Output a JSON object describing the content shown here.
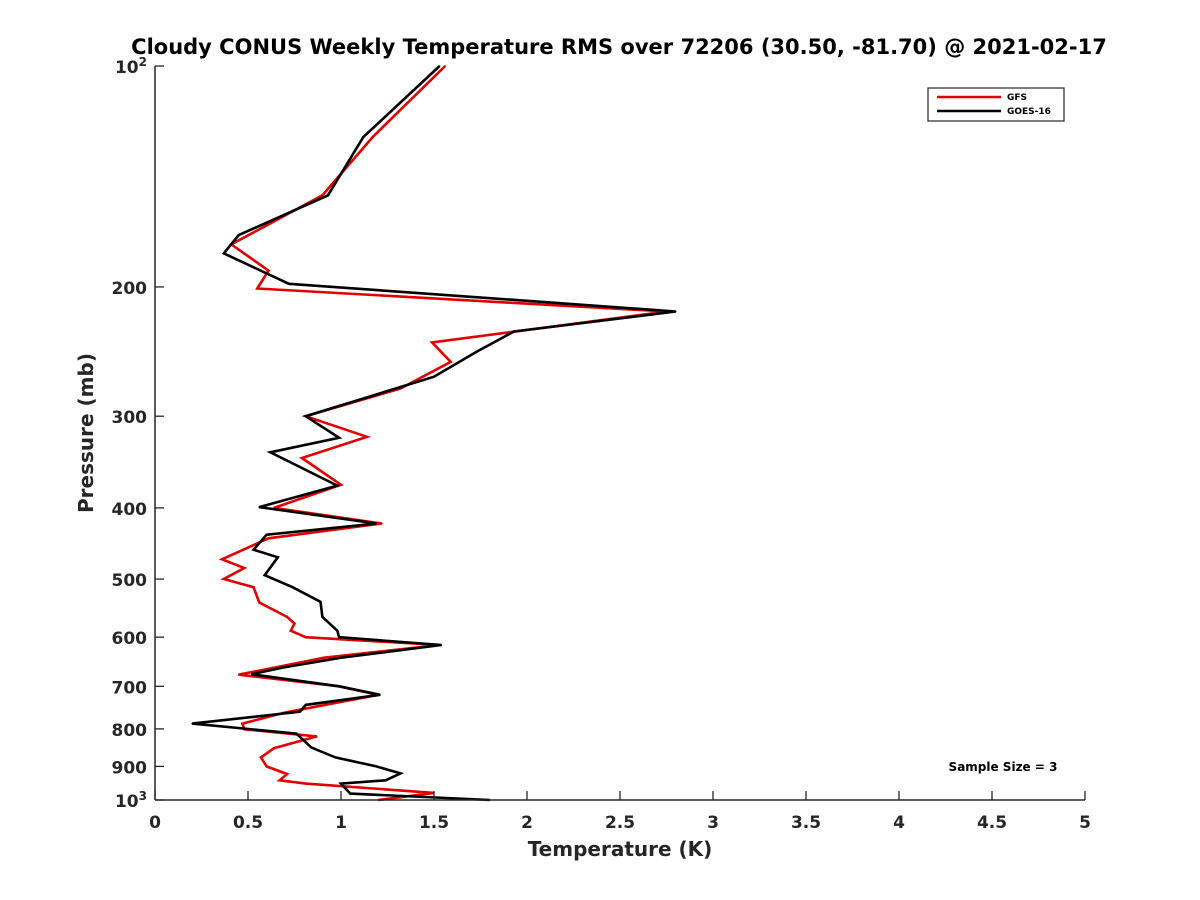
{
  "chart_data": {
    "type": "line",
    "title": "Cloudy CONUS Weekly Temperature RMS over 72206 (30.50, -81.70) @ 2021-02-17",
    "xlabel": "Temperature (K)",
    "ylabel": "Pressure (mb)",
    "xlim": [
      0,
      5
    ],
    "ylim": [
      100,
      1000
    ],
    "y_scale": "log",
    "y_reversed": true,
    "x_ticks": [
      "0",
      "0.5",
      "1",
      "1.5",
      "2",
      "2.5",
      "3",
      "3.5",
      "4",
      "4.5",
      "5"
    ],
    "y_ticks": [
      {
        "value": 100,
        "base": "10",
        "exp": "2"
      },
      {
        "value": 200,
        "label": "200"
      },
      {
        "value": 300,
        "label": "300"
      },
      {
        "value": 400,
        "label": "400"
      },
      {
        "value": 500,
        "label": "500"
      },
      {
        "value": 600,
        "label": "600"
      },
      {
        "value": 700,
        "label": "700"
      },
      {
        "value": 800,
        "label": "800"
      },
      {
        "value": 900,
        "label": "900"
      },
      {
        "value": 1000,
        "base": "10",
        "exp": "3"
      }
    ],
    "grid": false,
    "legend_position": "top-right",
    "annotation": "Sample Size = 3",
    "series": [
      {
        "name": "GFS",
        "color": "#e00000",
        "points": [
          [
            1.56,
            100
          ],
          [
            1.17,
            125
          ],
          [
            0.9,
            150
          ],
          [
            0.41,
            175
          ],
          [
            0.61,
            190
          ],
          [
            0.55,
            201
          ],
          [
            2.75,
            216
          ],
          [
            1.49,
            238
          ],
          [
            1.59,
            253
          ],
          [
            1.32,
            275
          ],
          [
            0.81,
            300
          ],
          [
            1.14,
            320
          ],
          [
            0.79,
            342
          ],
          [
            1.0,
            372
          ],
          [
            0.64,
            400
          ],
          [
            1.22,
            420
          ],
          [
            0.61,
            440
          ],
          [
            0.36,
            470
          ],
          [
            0.48,
            483
          ],
          [
            0.37,
            500
          ],
          [
            0.53,
            513
          ],
          [
            0.56,
            538
          ],
          [
            0.71,
            563
          ],
          [
            0.75,
            575
          ],
          [
            0.73,
            588
          ],
          [
            0.81,
            600
          ],
          [
            1.53,
            615
          ],
          [
            0.91,
            640
          ],
          [
            0.45,
            675
          ],
          [
            0.99,
            700
          ],
          [
            1.2,
            719
          ],
          [
            0.7,
            760
          ],
          [
            0.47,
            787
          ],
          [
            0.48,
            801
          ],
          [
            0.87,
            819
          ],
          [
            0.64,
            850
          ],
          [
            0.57,
            875
          ],
          [
            0.6,
            900
          ],
          [
            0.71,
            922
          ],
          [
            0.67,
            940
          ],
          [
            0.81,
            950
          ],
          [
            1.5,
            978
          ],
          [
            1.2,
            1000
          ]
        ]
      },
      {
        "name": "GOES-16",
        "color": "#000000",
        "points": [
          [
            1.53,
            100
          ],
          [
            1.12,
            125
          ],
          [
            0.93,
            150
          ],
          [
            0.45,
            170
          ],
          [
            0.37,
            180
          ],
          [
            0.72,
            198
          ],
          [
            2.8,
            216
          ],
          [
            1.93,
            230
          ],
          [
            1.73,
            245
          ],
          [
            1.5,
            265
          ],
          [
            0.81,
            300
          ],
          [
            0.99,
            321
          ],
          [
            0.62,
            336
          ],
          [
            0.98,
            373
          ],
          [
            0.56,
            399
          ],
          [
            1.19,
            420
          ],
          [
            0.6,
            435
          ],
          [
            0.53,
            456
          ],
          [
            0.66,
            467
          ],
          [
            0.59,
            494
          ],
          [
            0.74,
            513
          ],
          [
            0.89,
            537
          ],
          [
            0.9,
            563
          ],
          [
            0.98,
            588
          ],
          [
            0.99,
            600
          ],
          [
            1.54,
            615
          ],
          [
            1.0,
            640
          ],
          [
            0.69,
            660
          ],
          [
            0.52,
            674
          ],
          [
            0.99,
            700
          ],
          [
            1.21,
            719
          ],
          [
            0.81,
            742
          ],
          [
            0.78,
            758
          ],
          [
            0.2,
            787
          ],
          [
            0.76,
            812
          ],
          [
            0.84,
            848
          ],
          [
            0.97,
            875
          ],
          [
            1.19,
            900
          ],
          [
            1.32,
            920
          ],
          [
            1.24,
            940
          ],
          [
            1.0,
            950
          ],
          [
            1.05,
            980
          ],
          [
            1.8,
            1000
          ]
        ]
      }
    ]
  }
}
